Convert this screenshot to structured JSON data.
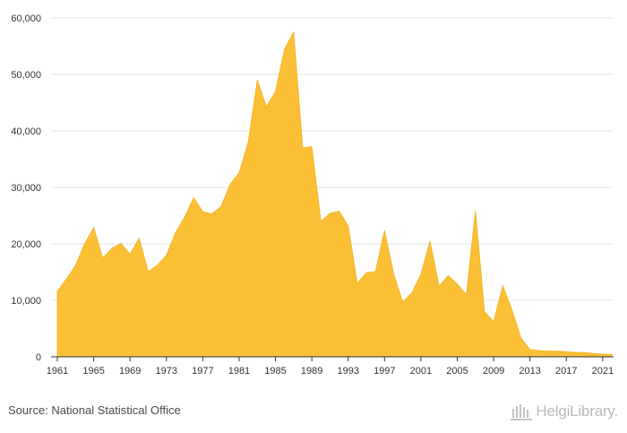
{
  "chart_data": {
    "type": "area",
    "title": "",
    "xlabel": "",
    "ylabel": "",
    "x": [
      1961,
      1962,
      1963,
      1964,
      1965,
      1966,
      1967,
      1968,
      1969,
      1970,
      1971,
      1972,
      1973,
      1974,
      1975,
      1976,
      1977,
      1978,
      1979,
      1980,
      1981,
      1982,
      1983,
      1984,
      1985,
      1986,
      1987,
      1988,
      1989,
      1990,
      1991,
      1992,
      1993,
      1994,
      1995,
      1996,
      1997,
      1998,
      1999,
      2000,
      2001,
      2002,
      2003,
      2004,
      2005,
      2006,
      2007,
      2008,
      2009,
      2010,
      2011,
      2012,
      2013,
      2014,
      2015,
      2016,
      2017,
      2018,
      2019,
      2020,
      2021,
      2022
    ],
    "series": [
      {
        "values": [
          11600,
          13800,
          16200,
          20000,
          22900,
          17500,
          19200,
          20100,
          18200,
          21000,
          15100,
          16200,
          18000,
          22000,
          24700,
          28200,
          25700,
          25300,
          26600,
          30500,
          32600,
          38000,
          49000,
          44300,
          47000,
          54500,
          57500,
          37000,
          37200,
          24000,
          25400,
          25800,
          23200,
          13000,
          14900,
          15100,
          22400,
          14700,
          9700,
          11300,
          14600,
          20500,
          12500,
          14400,
          12900,
          11000,
          25900,
          8000,
          6200,
          12600,
          8400,
          3400,
          1300,
          1100,
          1000,
          1000,
          900,
          800,
          750,
          600,
          500,
          400
        ]
      }
    ],
    "ylim": [
      0,
      60000
    ],
    "yticks": [
      0,
      10000,
      20000,
      30000,
      40000,
      50000,
      60000
    ],
    "ytick_labels": [
      "0",
      "10,000",
      "20,000",
      "30,000",
      "40,000",
      "50,000",
      "60,000"
    ],
    "xticks": [
      1961,
      1965,
      1969,
      1973,
      1977,
      1981,
      1985,
      1989,
      1993,
      1997,
      2001,
      2005,
      2009,
      2013,
      2017,
      2021
    ],
    "grid": true,
    "legend": "none",
    "colors": {
      "fill": "#fbbf36",
      "grid": "#e6e6e6",
      "axis": "#333333"
    }
  },
  "footer": {
    "source": "Source: National Statistical Office",
    "brand": "HelgiLibrary.",
    "brand_icon": "library-columns-icon"
  }
}
